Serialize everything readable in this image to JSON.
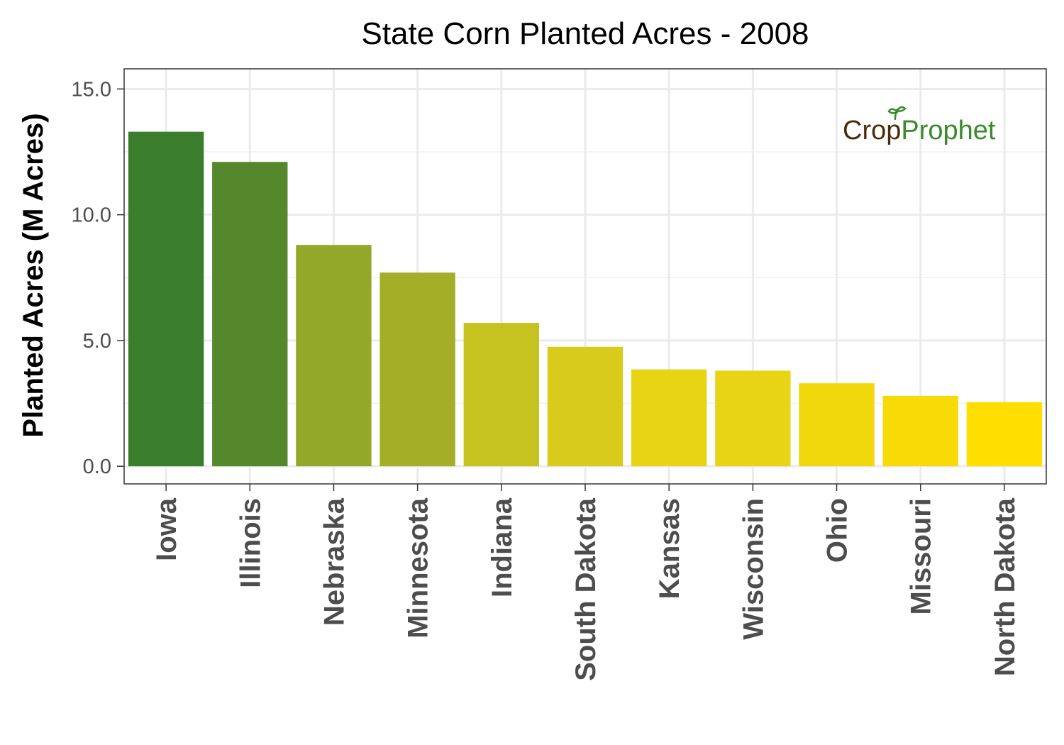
{
  "chart_data": {
    "type": "bar",
    "title": "State Corn Planted Acres - 2008",
    "xlabel": "",
    "ylabel": "Planted Acres (M Acres)",
    "ylim": [
      -0.7,
      15.8
    ],
    "yticks": [
      0,
      5,
      10,
      15
    ],
    "ytick_labels": [
      "0.0",
      "5.0",
      "10.0",
      "15.0"
    ],
    "grid": true,
    "categories": [
      "Iowa",
      "Illinois",
      "Nebraska",
      "Minnesota",
      "Indiana",
      "South Dakota",
      "Kansas",
      "Wisconsin",
      "Ohio",
      "Missouri",
      "North Dakota"
    ],
    "values": [
      13.3,
      12.1,
      8.8,
      7.7,
      5.7,
      4.75,
      3.85,
      3.8,
      3.3,
      2.8,
      2.55
    ],
    "colors": [
      "#3a7d2c",
      "#55882b",
      "#93a829",
      "#a5ae27",
      "#c6c320",
      "#d8cb1b",
      "#e8d314",
      "#e8d414",
      "#f0d80d",
      "#f8db06",
      "#ffde00"
    ]
  },
  "logo": {
    "part1": "Cr",
    "part2": "o",
    "part3": "p",
    "part4": "Prophet",
    "brown": "#4a2c0a",
    "green": "#3a8a2c"
  }
}
